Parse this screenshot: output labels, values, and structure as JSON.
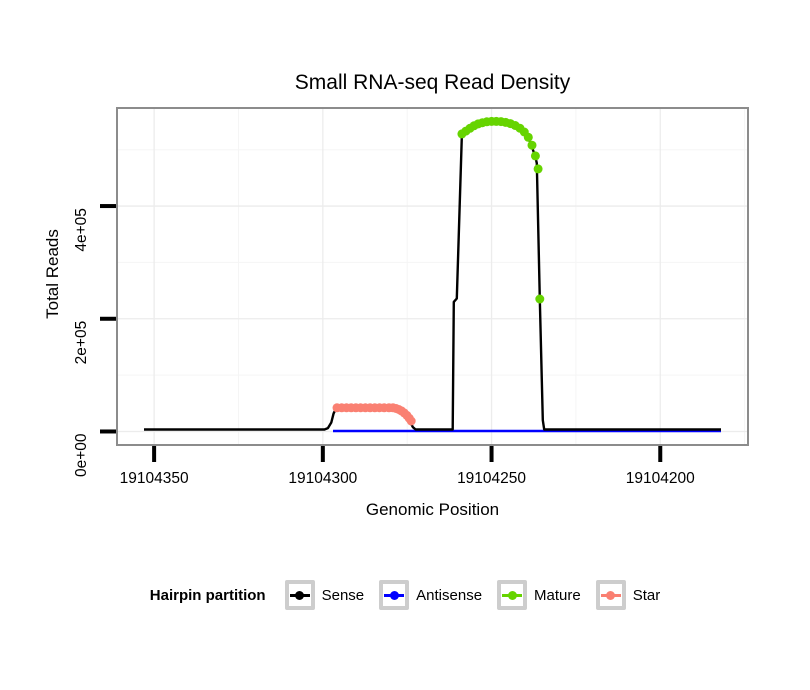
{
  "title": "Small RNA-seq Read Density",
  "axes": {
    "x_label": "Genomic Position",
    "y_label": "Total Reads"
  },
  "legend": {
    "title": "Hairpin partition",
    "items": [
      {
        "label": "Sense",
        "color": "#000000"
      },
      {
        "label": "Antisense",
        "color": "#0000ff"
      },
      {
        "label": "Mature",
        "color": "#66d400"
      },
      {
        "label": "Star",
        "color": "#fa8072"
      }
    ]
  },
  "style": {
    "panel_border_color": "#8c8c8c",
    "major_grid_color": "#ececec",
    "minor_grid_color": "#f5f5f5",
    "tick_color": "#000000"
  },
  "chart_data": {
    "type": "line",
    "title": "Small RNA-seq Read Density",
    "xlabel": "Genomic Position",
    "ylabel": "Total Reads",
    "x_axis": {
      "reversed": true,
      "domain": [
        19104361,
        19104174
      ],
      "ticks": [
        19104350,
        19104300,
        19104250,
        19104200
      ],
      "tick_labels": [
        "19104350",
        "19104300",
        "19104250",
        "19104200"
      ],
      "minor_ticks": [
        19104325,
        19104275,
        19104225,
        19104175
      ]
    },
    "y_axis": {
      "domain": [
        -24000,
        574000
      ],
      "ticks": [
        0,
        200000,
        400000
      ],
      "tick_labels": [
        "0e+00",
        "2e+05",
        "4e+05"
      ],
      "minor_ticks": [
        100000,
        300000,
        500000
      ]
    },
    "grid": true,
    "legend_position": "bottom",
    "series": [
      {
        "name": "Antisense",
        "type": "line",
        "color": "#0000ff",
        "width": 2.4,
        "points": [
          [
            19104297,
            800
          ],
          [
            19104182,
            800
          ]
        ]
      },
      {
        "name": "Sense",
        "type": "line",
        "color": "#000000",
        "width": 2.4,
        "points": [
          [
            19104353,
            3500
          ],
          [
            19104299.5,
            3500
          ],
          [
            19104298.5,
            6000
          ],
          [
            19104297.5,
            16000
          ],
          [
            19104296.8,
            32000
          ],
          [
            19104296,
            41500
          ],
          [
            19104279.5,
            42000
          ],
          [
            19104278,
            40000
          ],
          [
            19104276.5,
            35500
          ],
          [
            19104275.2,
            27500
          ],
          [
            19104274.2,
            17500
          ],
          [
            19104273.3,
            7500
          ],
          [
            19104272.5,
            3500
          ],
          [
            19104261.5,
            3500
          ],
          [
            19104261.2,
            230000
          ],
          [
            19104260.3,
            236000
          ],
          [
            19104258.8,
            528000
          ],
          [
            19104257.5,
            534000
          ],
          [
            19104256,
            539000
          ],
          [
            19104254,
            545000
          ],
          [
            19104252,
            548000
          ],
          [
            19104250,
            550000
          ],
          [
            19104248,
            550200
          ],
          [
            19104246,
            549200
          ],
          [
            19104244,
            546200
          ],
          [
            19104242,
            541000
          ],
          [
            19104240.5,
            535000
          ],
          [
            19104239.3,
            524000
          ],
          [
            19104238.2,
            508000
          ],
          [
            19104237,
            487000
          ],
          [
            19104236.6,
            476000
          ],
          [
            19104235.7,
            235000
          ],
          [
            19104234.8,
            20000
          ],
          [
            19104234.4,
            3500
          ],
          [
            19104182,
            3500
          ]
        ]
      },
      {
        "name": "Star",
        "type": "points",
        "color": "#fa8072",
        "radius": 4.5,
        "points": [
          [
            19104295.8,
            42000
          ],
          [
            19104294.4,
            42000
          ],
          [
            19104293.0,
            42000
          ],
          [
            19104291.6,
            42000
          ],
          [
            19104290.2,
            42000
          ],
          [
            19104288.8,
            42000
          ],
          [
            19104287.4,
            42000
          ],
          [
            19104286.0,
            42000
          ],
          [
            19104284.6,
            42000
          ],
          [
            19104283.2,
            42000
          ],
          [
            19104281.8,
            42000
          ],
          [
            19104280.4,
            42000
          ],
          [
            19104279.2,
            42000
          ],
          [
            19104278.3,
            40800
          ],
          [
            19104277.5,
            39000
          ],
          [
            19104276.7,
            36500
          ],
          [
            19104275.9,
            33000
          ],
          [
            19104275.1,
            28500
          ],
          [
            19104274.4,
            23500
          ],
          [
            19104273.8,
            18500
          ]
        ]
      },
      {
        "name": "Mature",
        "type": "points",
        "color": "#66d400",
        "radius": 4.5,
        "points": [
          [
            19104258.8,
            528000
          ],
          [
            19104257.6,
            533000
          ],
          [
            19104256.4,
            538000
          ],
          [
            19104255.2,
            542500
          ],
          [
            19104254.0,
            545800
          ],
          [
            19104252.7,
            548000
          ],
          [
            19104251.4,
            549500
          ],
          [
            19104250.0,
            550200
          ],
          [
            19104248.6,
            550300
          ],
          [
            19104247.2,
            549800
          ],
          [
            19104245.8,
            548500
          ],
          [
            19104244.4,
            546300
          ],
          [
            19104243.0,
            543000
          ],
          [
            19104241.6,
            538200
          ],
          [
            19104240.3,
            531500
          ],
          [
            19104239.1,
            522000
          ],
          [
            19104238.0,
            508000
          ],
          [
            19104237.0,
            489000
          ],
          [
            19104236.2,
            466000
          ],
          [
            19104235.7,
            235000
          ]
        ]
      }
    ]
  }
}
